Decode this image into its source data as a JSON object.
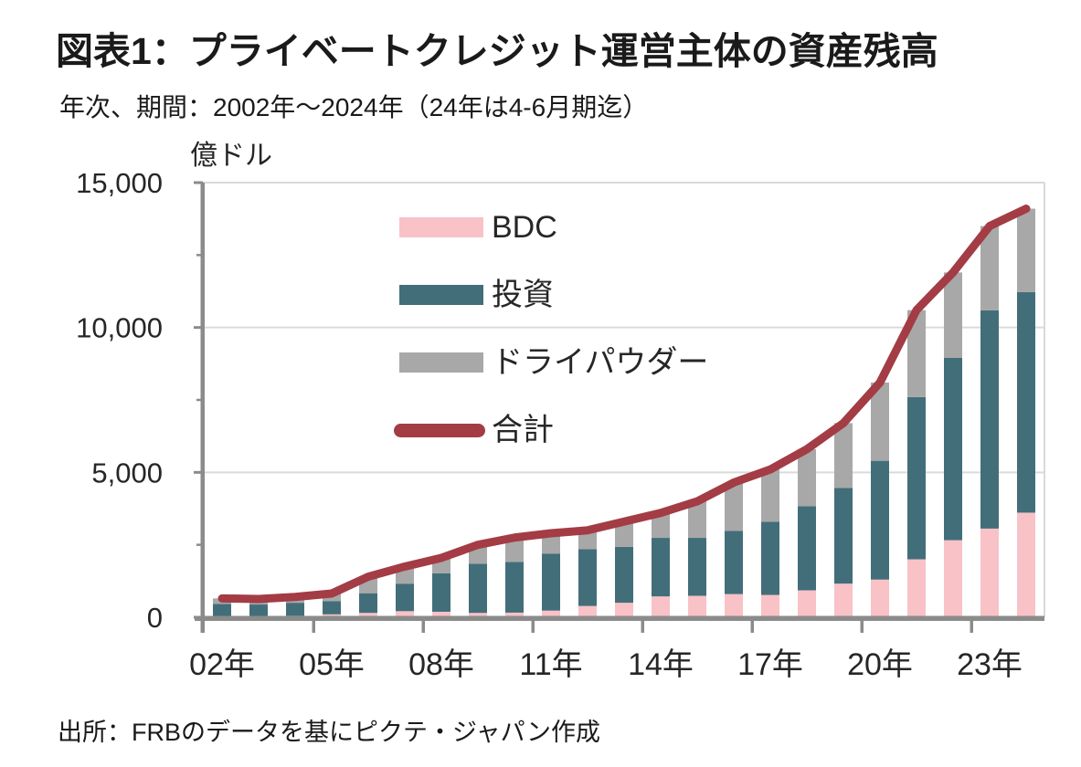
{
  "page": {
    "title": "図表1：プライベートクレジット運営主体の資産残高",
    "subtitle": "年次、期間：2002年～2024年（24年は4-6月期迄）",
    "unit_label": "億ドル",
    "source": "出所：FRBのデータを基にピクテ・ジャパン作成"
  },
  "colors": {
    "bdc": "#F8C2C7",
    "investment": "#426E7A",
    "dry_powder": "#A8A8A8",
    "total_line": "#A33C45",
    "axis": "#8B8B8B",
    "gridline": "#DADADA",
    "text": "#262626"
  },
  "legend": [
    {
      "label": "BDC",
      "swatch": "box",
      "color_key": "bdc"
    },
    {
      "label": "投資",
      "swatch": "box",
      "color_key": "investment"
    },
    {
      "label": "ドライパウダー",
      "swatch": "box",
      "color_key": "dry_powder"
    },
    {
      "label": "合計",
      "swatch": "line",
      "color_key": "total_line"
    }
  ],
  "chart_data": {
    "type": "bar",
    "stacked": true,
    "title": "図表1：プライベートクレジット運営主体の資産残高",
    "ylabel": "億ドル",
    "xlabel": "",
    "ylim": [
      0,
      15000
    ],
    "grid": "horizontal",
    "legend_position": "upper-left-inside",
    "x": [
      2002,
      2003,
      2004,
      2005,
      2006,
      2007,
      2008,
      2009,
      2010,
      2011,
      2012,
      2013,
      2014,
      2015,
      2016,
      2017,
      2018,
      2019,
      2020,
      2021,
      2022,
      2023,
      2024
    ],
    "series": [
      {
        "name": "BDC",
        "type": "bar",
        "color_key": "bdc",
        "values": [
          0,
          0,
          50,
          100,
          150,
          210,
          190,
          150,
          160,
          230,
          390,
          500,
          720,
          740,
          800,
          770,
          930,
          1160,
          1300,
          2000,
          2660,
          3060,
          3610
        ]
      },
      {
        "name": "投資",
        "type": "bar",
        "color_key": "investment",
        "values": [
          460,
          440,
          450,
          460,
          680,
          950,
          1330,
          1700,
          1750,
          1960,
          1960,
          1930,
          2020,
          2000,
          2180,
          2530,
          2900,
          3300,
          4100,
          5600,
          6290,
          7530,
          7610
        ]
      },
      {
        "name": "ドライパウダー",
        "type": "bar",
        "color_key": "dry_powder",
        "values": [
          190,
          190,
          200,
          260,
          570,
          590,
          530,
          650,
          840,
          710,
          650,
          870,
          860,
          1260,
          1670,
          1800,
          1970,
          2240,
          2700,
          3000,
          2950,
          2910,
          2880
        ]
      },
      {
        "name": "合計",
        "type": "line",
        "color_key": "total_line",
        "values": [
          650,
          630,
          700,
          820,
          1400,
          1750,
          2050,
          2500,
          2750,
          2900,
          3000,
          3300,
          3600,
          4000,
          4650,
          5100,
          5800,
          6700,
          8100,
          10600,
          11900,
          13500,
          14100
        ]
      }
    ],
    "y_axis": {
      "ticks": [
        {
          "value": 0,
          "label": "0"
        },
        {
          "value": 5000,
          "label": "5,000"
        },
        {
          "value": 10000,
          "label": "10,000"
        },
        {
          "value": 15000,
          "label": "15,000"
        }
      ],
      "minor_ticks": [
        2500,
        7500,
        12500
      ]
    },
    "x_axis": {
      "labels": [
        {
          "index": 0,
          "label": "02年"
        },
        {
          "index": 3,
          "label": "05年"
        },
        {
          "index": 6,
          "label": "08年"
        },
        {
          "index": 9,
          "label": "11年"
        },
        {
          "index": 12,
          "label": "14年"
        },
        {
          "index": 15,
          "label": "17年"
        },
        {
          "index": 18,
          "label": "20年"
        },
        {
          "index": 21,
          "label": "23年"
        }
      ],
      "group_size": 3
    }
  }
}
